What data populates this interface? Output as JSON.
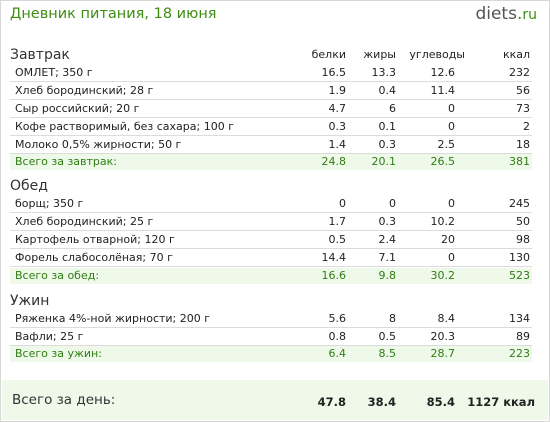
{
  "header": {
    "title": "Дневник питания, 18 июня",
    "logo_main": "diets",
    "logo_dot": ".",
    "logo_tld": "ru"
  },
  "columns": [
    "белки",
    "жиры",
    "углеводы",
    "ккал"
  ],
  "meals": [
    {
      "name": "Завтрак",
      "items": [
        {
          "name": "ОМЛЕТ; 350 г",
          "protein": "16.5",
          "fat": "13.3",
          "carbs": "12.6",
          "kcal": "232"
        },
        {
          "name": "Хлеб бородинский; 28 г",
          "protein": "1.9",
          "fat": "0.4",
          "carbs": "11.4",
          "kcal": "56"
        },
        {
          "name": "Сыр российский; 20 г",
          "protein": "4.7",
          "fat": "6",
          "carbs": "0",
          "kcal": "73"
        },
        {
          "name": "Кофе растворимый, без сахара; 100 г",
          "protein": "0.3",
          "fat": "0.1",
          "carbs": "0",
          "kcal": "2"
        },
        {
          "name": "Молоко 0,5% жирности; 50 г",
          "protein": "1.4",
          "fat": "0.3",
          "carbs": "2.5",
          "kcal": "18"
        }
      ],
      "total": {
        "label": "Всего за завтрак:",
        "protein": "24.8",
        "fat": "20.1",
        "carbs": "26.5",
        "kcal": "381"
      }
    },
    {
      "name": "Обед",
      "items": [
        {
          "name": "борщ; 350 г",
          "protein": "0",
          "fat": "0",
          "carbs": "0",
          "kcal": "245"
        },
        {
          "name": "Хлеб бородинский; 25 г",
          "protein": "1.7",
          "fat": "0.3",
          "carbs": "10.2",
          "kcal": "50"
        },
        {
          "name": "Картофель отварной; 120 г",
          "protein": "0.5",
          "fat": "2.4",
          "carbs": "20",
          "kcal": "98"
        },
        {
          "name": "Форель слабосолёная; 70 г",
          "protein": "14.4",
          "fat": "7.1",
          "carbs": "0",
          "kcal": "130"
        }
      ],
      "total": {
        "label": "Всего за обед:",
        "protein": "16.6",
        "fat": "9.8",
        "carbs": "30.2",
        "kcal": "523"
      }
    },
    {
      "name": "Ужин",
      "items": [
        {
          "name": "Ряженка 4%-ной жирности; 200 г",
          "protein": "5.6",
          "fat": "8",
          "carbs": "8.4",
          "kcal": "134"
        },
        {
          "name": "Вафли; 25 г",
          "protein": "0.8",
          "fat": "0.5",
          "carbs": "20.3",
          "kcal": "89"
        }
      ],
      "total": {
        "label": "Всего за ужин:",
        "protein": "6.4",
        "fat": "8.5",
        "carbs": "28.7",
        "kcal": "223"
      }
    }
  ],
  "day_total": {
    "label": "Всего за день:",
    "protein": "47.8",
    "fat": "38.4",
    "carbs": "85.4",
    "kcal": "1127 ккал"
  },
  "colors": {
    "accent": "#3e8e14",
    "total_bg": "#eef9ea",
    "total_text": "#2f7d12",
    "divider": "#dcdcdc"
  }
}
